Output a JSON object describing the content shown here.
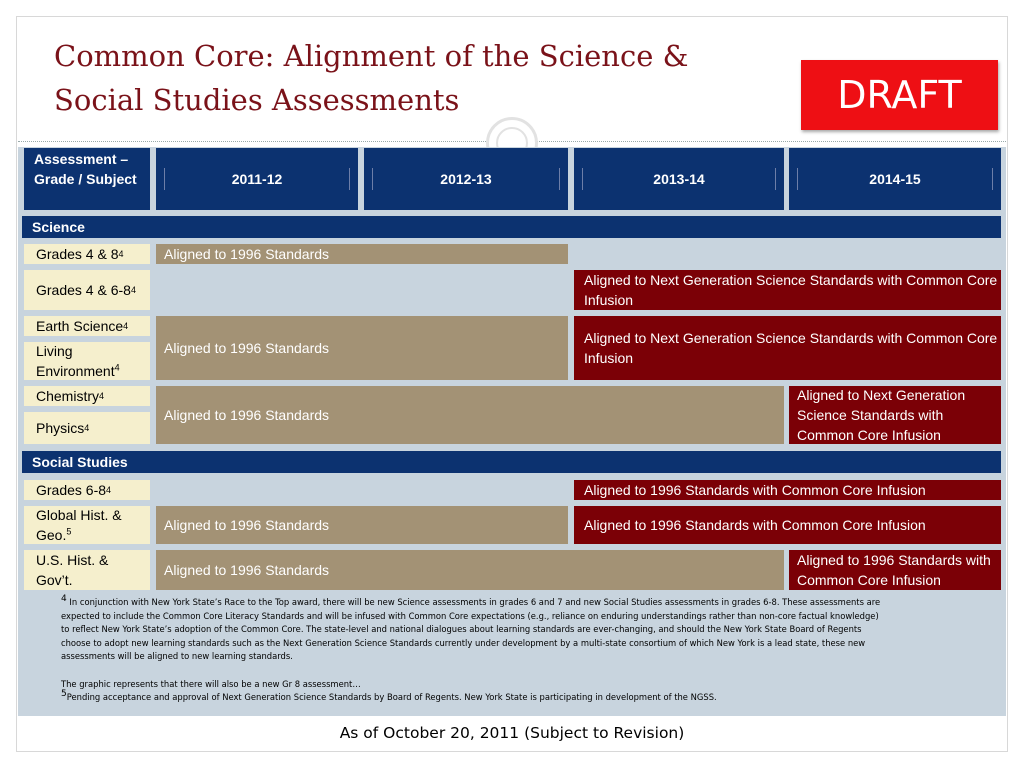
{
  "title": {
    "line1": "Common Core: Alignment of the Science &",
    "line2": "Social Studies Assessments"
  },
  "draft_badge": "DRAFT",
  "header": {
    "label": "Assessment – Grade / Subject",
    "years": [
      "2011-12",
      "2012-13",
      "2013-14",
      "2014-15"
    ]
  },
  "science": {
    "section_label": "Science",
    "rows": [
      {
        "label": "Grades 4 & 8",
        "sup": "4"
      },
      {
        "label": "Grades 4 & 6-8",
        "sup": "4"
      },
      {
        "label": "Earth Science",
        "sup": "4"
      },
      {
        "label": "Living Environment",
        "sup": "4"
      },
      {
        "label": "Chemistry",
        "sup": "4"
      },
      {
        "label": "Physics",
        "sup": "4"
      }
    ],
    "bars": {
      "grades48_1996": "Aligned to 1996 Standards",
      "grades468_ngss": "Aligned to Next Generation Science Standards with Common Core Infusion",
      "earth_living_1996": "Aligned to 1996 Standards",
      "earth_living_ngss": "Aligned to Next Generation Science Standards with Common Core Infusion",
      "chem_phys_1996": "Aligned to 1996 Standards",
      "chem_phys_ngss": "Aligned to Next Generation Science Standards with Common Core Infusion"
    }
  },
  "social": {
    "section_label": "Social Studies",
    "rows": [
      {
        "label": "Grades 6-8",
        "sup": "4"
      },
      {
        "label": "Global Hist. & Geo.",
        "sup": "5"
      },
      {
        "label": "U.S. Hist. & Gov’t.",
        "sup": ""
      }
    ],
    "bars": {
      "grades68_cc": "Aligned to 1996 Standards with Common Core Infusion",
      "global_1996": "Aligned to 1996 Standards",
      "global_cc": "Aligned to 1996 Standards with Common Core Infusion",
      "us_1996": "Aligned to 1996 Standards",
      "us_cc": "Aligned to 1996 Standards with Common Core Infusion"
    }
  },
  "notes": {
    "sup4": "4",
    "p1_l1": " In conjunction with New York State’s Race to the Top award, there will be new Science assessments in grades 6 and 7  and new Social Studies assessments in grades 6-8.  These assessments are",
    "p1_l2": "expected to include the Common Core Literacy Standards and will be infused with Common Core expectations (e.g., reliance on enduring understandings rather than non-core factual knowledge)",
    "p1_l3": "to reflect New York State’s adoption of the Common Core.  The state-level and national dialogues about learning standards are ever-changing, and should the New York State Board of Regents",
    "p1_l4": "choose to adopt new learning standards such as the Next Generation Science Standards currently under development by a multi-state consortium of which New York is a lead state, these new",
    "p1_l5": "assessments will be aligned to new learning standards.",
    "p2": " The graphic represents that there will also be a new Gr 8 assessment…",
    "sup5": "5",
    "p3": "Pending acceptance and approval of Next Generation Science Standards by Board of Regents. New York State is participating in development of the NGSS."
  },
  "footer": "As of October 20, 2011 (Subject to Revision)",
  "colors": {
    "navy": "#0c3270",
    "tan": "#a39275",
    "dark_red": "#7b0006",
    "label_cream": "#f5efcd",
    "panel": "#c8d4de",
    "draft_red": "#ee0f14",
    "title": "#7a1219"
  }
}
